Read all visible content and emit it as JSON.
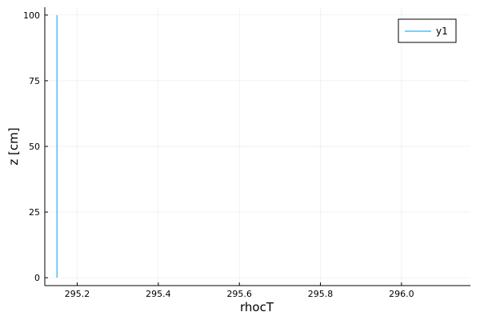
{
  "chart_data": {
    "type": "line",
    "xlabel": "rhocT",
    "ylabel": "z [cm]",
    "xlim": [
      295.12,
      296.17
    ],
    "ylim": [
      -3,
      103
    ],
    "x_ticks": [
      295.2,
      295.4,
      295.6,
      295.8,
      296.0
    ],
    "x_tick_labels": [
      "295.2",
      "295.4",
      "295.6",
      "295.8",
      "296.0"
    ],
    "y_ticks": [
      0,
      25,
      50,
      75,
      100
    ],
    "y_tick_labels": [
      "0",
      "25",
      "50",
      "75",
      "100"
    ],
    "grid": true,
    "legend_position": "top-right",
    "series": [
      {
        "name": "y1",
        "color": "#009AFA",
        "x": [
          295.15,
          295.15
        ],
        "y": [
          0,
          100
        ]
      }
    ]
  }
}
